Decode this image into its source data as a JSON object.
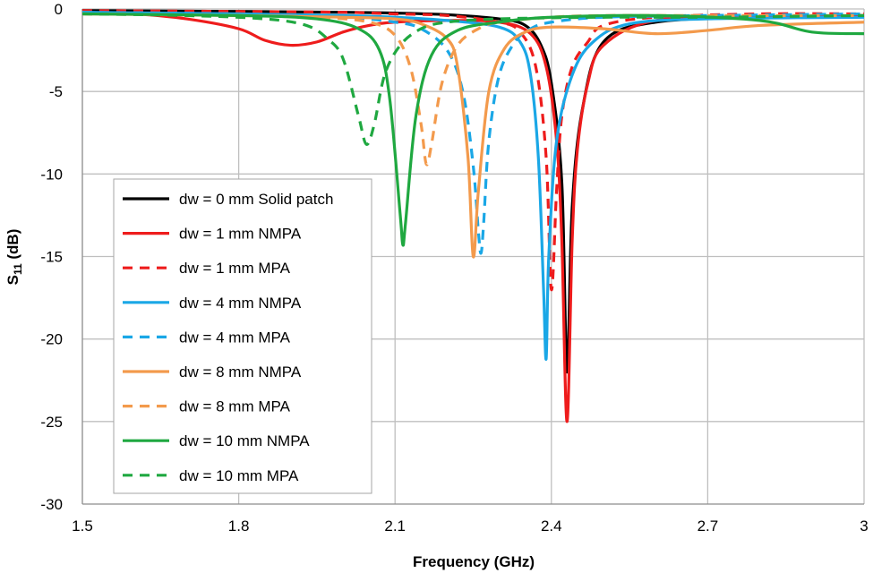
{
  "chart_data": {
    "type": "line",
    "title": "",
    "xlabel": "Frequency (GHz)",
    "ylabel_main": "S",
    "ylabel_sub": "11",
    "ylabel_suffix": " (dB)",
    "xlim": [
      1.5,
      3.0
    ],
    "ylim": [
      -30,
      0
    ],
    "xticks": [
      1.5,
      1.8,
      2.1,
      2.4,
      2.7,
      3.0
    ],
    "xtick_labels": [
      "1.5",
      "1.8",
      "2.1",
      "2.4",
      "2.7",
      "3"
    ],
    "yticks": [
      0,
      -5,
      -10,
      -15,
      -20,
      -25,
      -30
    ],
    "ytick_labels": [
      "0",
      "-5",
      "-10",
      "-15",
      "-20",
      "-25",
      "-30"
    ],
    "grid": true,
    "legend_position": "bottom-left",
    "series": [
      {
        "name": "dw = 0 mm Solid patch",
        "color": "#000000",
        "dash": false,
        "x": [
          1.5,
          1.8,
          2.0,
          2.1,
          2.2,
          2.3,
          2.35,
          2.38,
          2.4,
          2.42,
          2.43,
          2.44,
          2.46,
          2.5,
          2.6,
          2.8,
          3.0
        ],
        "y": [
          -0.1,
          -0.15,
          -0.2,
          -0.25,
          -0.35,
          -0.6,
          -1.0,
          -2.2,
          -4.5,
          -10.5,
          -22.0,
          -12.0,
          -6.0,
          -2.0,
          -0.8,
          -0.5,
          -0.4
        ]
      },
      {
        "name": "dw = 1 mm NMPA",
        "color": "#ee1c1c",
        "dash": false,
        "x": [
          1.5,
          1.6,
          1.7,
          1.8,
          1.85,
          1.9,
          1.95,
          2.0,
          2.05,
          2.1,
          2.2,
          2.3,
          2.36,
          2.39,
          2.41,
          2.42,
          2.43,
          2.44,
          2.45,
          2.47,
          2.5,
          2.6,
          2.8,
          3.0
        ],
        "y": [
          -0.2,
          -0.3,
          -0.6,
          -1.2,
          -1.9,
          -2.2,
          -2.0,
          -1.4,
          -1.0,
          -0.8,
          -0.7,
          -0.8,
          -1.5,
          -3.5,
          -8.0,
          -14.0,
          -25.0,
          -14.0,
          -8.5,
          -4.5,
          -2.2,
          -0.7,
          -0.5,
          -0.4
        ]
      },
      {
        "name": "dw = 1 mm MPA",
        "color": "#ee1c1c",
        "dash": true,
        "x": [
          1.5,
          1.8,
          2.0,
          2.1,
          2.2,
          2.3,
          2.34,
          2.37,
          2.39,
          2.4,
          2.41,
          2.42,
          2.44,
          2.47,
          2.5,
          2.6,
          2.8,
          3.0
        ],
        "y": [
          -0.1,
          -0.15,
          -0.2,
          -0.3,
          -0.4,
          -0.8,
          -1.4,
          -3.5,
          -9.0,
          -17.0,
          -11.0,
          -6.5,
          -3.5,
          -2.0,
          -1.0,
          -0.5,
          -0.3,
          -0.3
        ]
      },
      {
        "name": "dw = 4 mm NMPA",
        "color": "#1aa7e6",
        "dash": false,
        "x": [
          1.5,
          1.8,
          2.0,
          2.1,
          2.2,
          2.3,
          2.34,
          2.36,
          2.375,
          2.385,
          2.39,
          2.395,
          2.41,
          2.44,
          2.48,
          2.55,
          2.7,
          3.0
        ],
        "y": [
          -0.2,
          -0.3,
          -0.4,
          -0.5,
          -0.7,
          -1.1,
          -2.0,
          -4.0,
          -9.0,
          -17.0,
          -21.2,
          -15.0,
          -8.0,
          -4.0,
          -2.0,
          -0.9,
          -0.6,
          -0.5
        ]
      },
      {
        "name": "dw = 4 mm MPA",
        "color": "#1aa7e6",
        "dash": true,
        "x": [
          1.5,
          1.8,
          2.0,
          2.1,
          2.15,
          2.2,
          2.23,
          2.25,
          2.26,
          2.265,
          2.27,
          2.28,
          2.3,
          2.33,
          2.36,
          2.4,
          2.5,
          2.7,
          3.0
        ],
        "y": [
          -0.2,
          -0.3,
          -0.5,
          -0.8,
          -1.2,
          -2.5,
          -5.0,
          -9.5,
          -13.5,
          -14.8,
          -13.0,
          -8.0,
          -4.0,
          -2.0,
          -1.2,
          -0.8,
          -0.5,
          -0.4,
          -0.3
        ]
      },
      {
        "name": "dw = 8 mm NMPA",
        "color": "#f39a4c",
        "dash": false,
        "x": [
          1.5,
          1.8,
          2.0,
          2.1,
          2.15,
          2.2,
          2.22,
          2.24,
          2.25,
          2.26,
          2.28,
          2.31,
          2.35,
          2.4,
          2.5,
          2.6,
          2.7,
          2.8,
          3.0
        ],
        "y": [
          -0.3,
          -0.4,
          -0.5,
          -0.6,
          -0.9,
          -1.8,
          -3.5,
          -9.0,
          -15.0,
          -11.0,
          -5.0,
          -2.4,
          -1.4,
          -1.1,
          -1.2,
          -1.5,
          -1.3,
          -1.0,
          -0.8
        ]
      },
      {
        "name": "dw = 8 mm MPA",
        "color": "#f39a4c",
        "dash": true,
        "x": [
          1.5,
          1.8,
          1.95,
          2.05,
          2.1,
          2.13,
          2.15,
          2.16,
          2.17,
          2.19,
          2.22,
          2.26,
          2.3,
          2.4,
          2.5,
          2.7,
          3.0
        ],
        "y": [
          -0.3,
          -0.4,
          -0.5,
          -0.8,
          -1.6,
          -3.6,
          -7.0,
          -9.4,
          -8.2,
          -4.5,
          -2.2,
          -1.2,
          -0.8,
          -0.5,
          -0.4,
          -0.4,
          -0.4
        ]
      },
      {
        "name": "dw = 10 mm NMPA",
        "color": "#1fa840",
        "dash": false,
        "x": [
          1.5,
          1.8,
          1.95,
          2.03,
          2.07,
          2.09,
          2.11,
          2.115,
          2.12,
          2.14,
          2.17,
          2.22,
          2.3,
          2.4,
          2.6,
          2.8,
          2.9,
          3.0
        ],
        "y": [
          -0.3,
          -0.4,
          -0.6,
          -1.2,
          -2.5,
          -5.5,
          -12.5,
          -14.3,
          -13.0,
          -6.5,
          -2.8,
          -1.3,
          -0.8,
          -0.5,
          -0.4,
          -0.7,
          -1.4,
          -1.5
        ]
      },
      {
        "name": "dw = 10 mm MPA",
        "color": "#1fa840",
        "dash": true,
        "x": [
          1.5,
          1.7,
          1.85,
          1.93,
          1.97,
          2.0,
          2.03,
          2.045,
          2.06,
          2.08,
          2.11,
          2.15,
          2.2,
          2.3,
          2.5,
          2.7,
          3.0
        ],
        "y": [
          -0.3,
          -0.4,
          -0.6,
          -1.0,
          -1.8,
          -3.0,
          -6.5,
          -8.2,
          -7.0,
          -4.0,
          -2.2,
          -1.2,
          -0.8,
          -0.6,
          -0.5,
          -0.5,
          -0.4
        ]
      }
    ]
  }
}
